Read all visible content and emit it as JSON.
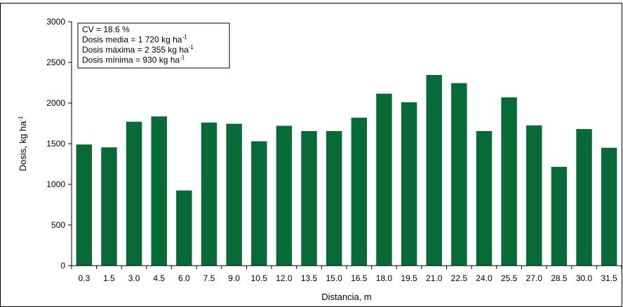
{
  "chart_data": {
    "type": "bar",
    "categories": [
      "0.3",
      "1.5",
      "3.0",
      "4.5",
      "6.0",
      "7.5",
      "9.0",
      "10.5",
      "12.0",
      "13.5",
      "15.0",
      "16.5",
      "18.0",
      "19.5",
      "21.0",
      "22.5",
      "24.0",
      "25.5",
      "27.0",
      "28.5",
      "30.0",
      "31.5"
    ],
    "values": [
      1490,
      1455,
      1770,
      1835,
      925,
      1760,
      1745,
      1530,
      1720,
      1655,
      1655,
      1820,
      2115,
      2010,
      2345,
      2245,
      1655,
      2070,
      1725,
      1215,
      1680,
      1450
    ],
    "xlabel": "Distancia, m",
    "ylabel": "Dosis, kg ha",
    "ylabel_superscript": "-1",
    "ylim": [
      0,
      3000
    ],
    "yticks": [
      0,
      500,
      1000,
      1500,
      2000,
      2500,
      3000
    ],
    "bar_color": "#086b37",
    "grid": false,
    "annotation": {
      "lines": [
        {
          "text": "CV = 18.6 %",
          "sup": ""
        },
        {
          "text": "Dosis media = 1 720 kg ha",
          "sup": "-1"
        },
        {
          "text": "Dosis máxima = 2 355 kg ha",
          "sup": "-1"
        },
        {
          "text": "Dosis mínima = 930 kg ha",
          "sup": "-1"
        }
      ]
    }
  }
}
